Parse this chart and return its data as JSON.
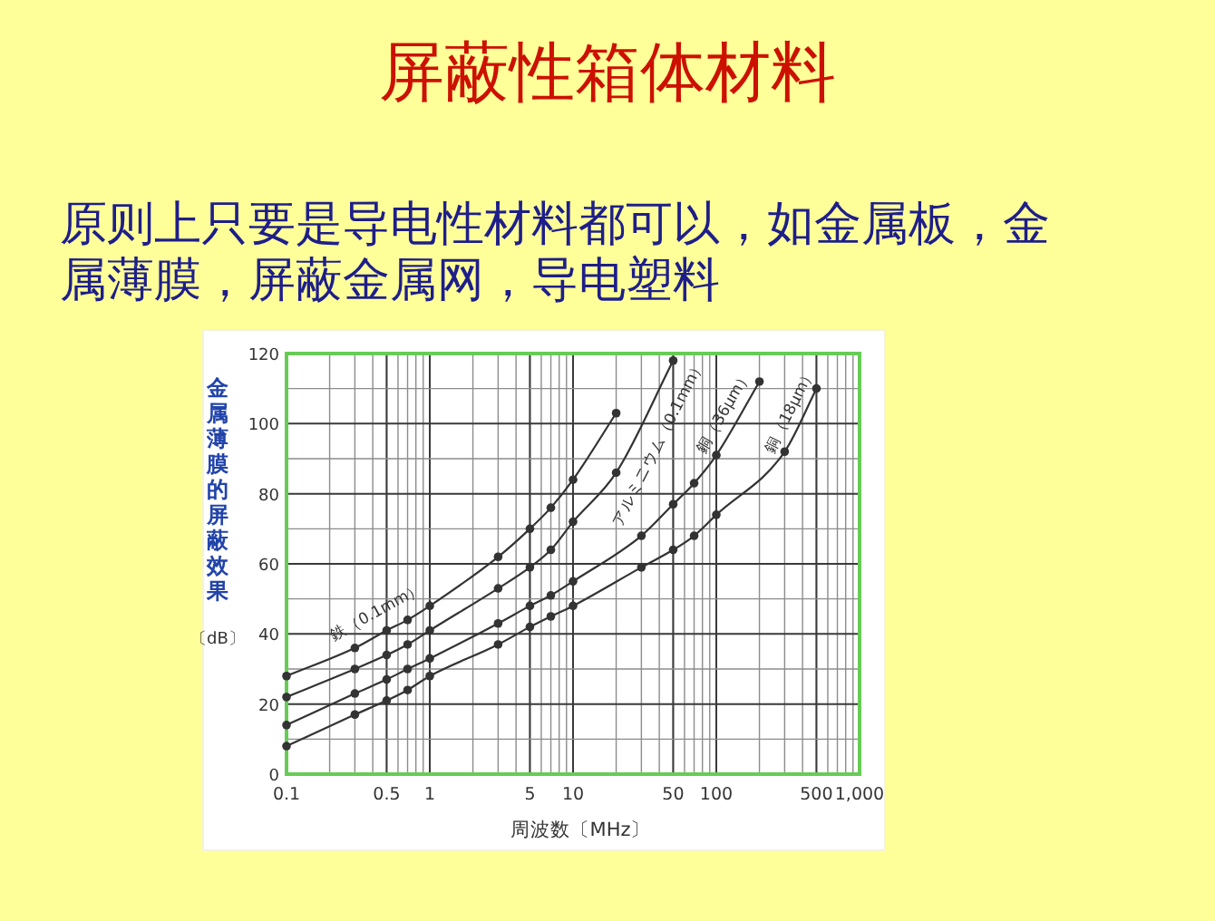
{
  "chart_data": {
    "type": "line",
    "title": "屏蔽性箱体材料",
    "subtitle": "原则上只要是导电性材料都可以，如金属板，金属薄膜，屏蔽金属网，导电塑料",
    "xlabel": "周波数〔MHz〕",
    "ylabel": "金属薄膜的屏蔽效果〔dB〕",
    "log": "x",
    "grid": true,
    "marker": "circle",
    "line_style": "solid",
    "xlim": [
      0.1,
      1000
    ],
    "ylim": [
      0,
      120
    ],
    "xticks": [
      0.1,
      0.5,
      1,
      5,
      10,
      50,
      100,
      500,
      {
        "value": 1000,
        "label": "1,000"
      }
    ],
    "yticks": [
      0,
      20,
      40,
      60,
      80,
      100,
      120
    ],
    "series": [
      {
        "name": "鉄（0.1mm）",
        "color": "#333333",
        "x": [
          0.1,
          0.3,
          0.5,
          0.7,
          1,
          3,
          5,
          7,
          10,
          20
        ],
        "values": [
          28,
          36,
          41,
          44,
          48,
          62,
          70,
          76,
          84,
          103
        ]
      },
      {
        "name": "アルミニウム（0.1mm）",
        "color": "#333333",
        "x": [
          0.1,
          0.3,
          0.5,
          0.7,
          1,
          3,
          5,
          7,
          10,
          20,
          50
        ],
        "values": [
          22,
          30,
          34,
          37,
          41,
          53,
          59,
          64,
          72,
          86,
          118
        ]
      },
      {
        "name": "銅（36µm）",
        "color": "#333333",
        "x": [
          0.1,
          0.3,
          0.5,
          0.7,
          1,
          3,
          5,
          7,
          10,
          30,
          50,
          70,
          100,
          200
        ],
        "values": [
          14,
          23,
          27,
          30,
          33,
          43,
          48,
          51,
          55,
          68,
          77,
          83,
          91,
          112
        ]
      },
      {
        "name": "銅（18µm）",
        "color": "#333333",
        "x": [
          0.1,
          0.3,
          0.5,
          0.7,
          1,
          3,
          5,
          7,
          10,
          30,
          50,
          70,
          100,
          300,
          500
        ],
        "values": [
          8,
          17,
          21,
          24,
          28,
          37,
          42,
          45,
          48,
          59,
          64,
          68,
          74,
          92,
          110
        ]
      }
    ]
  }
}
